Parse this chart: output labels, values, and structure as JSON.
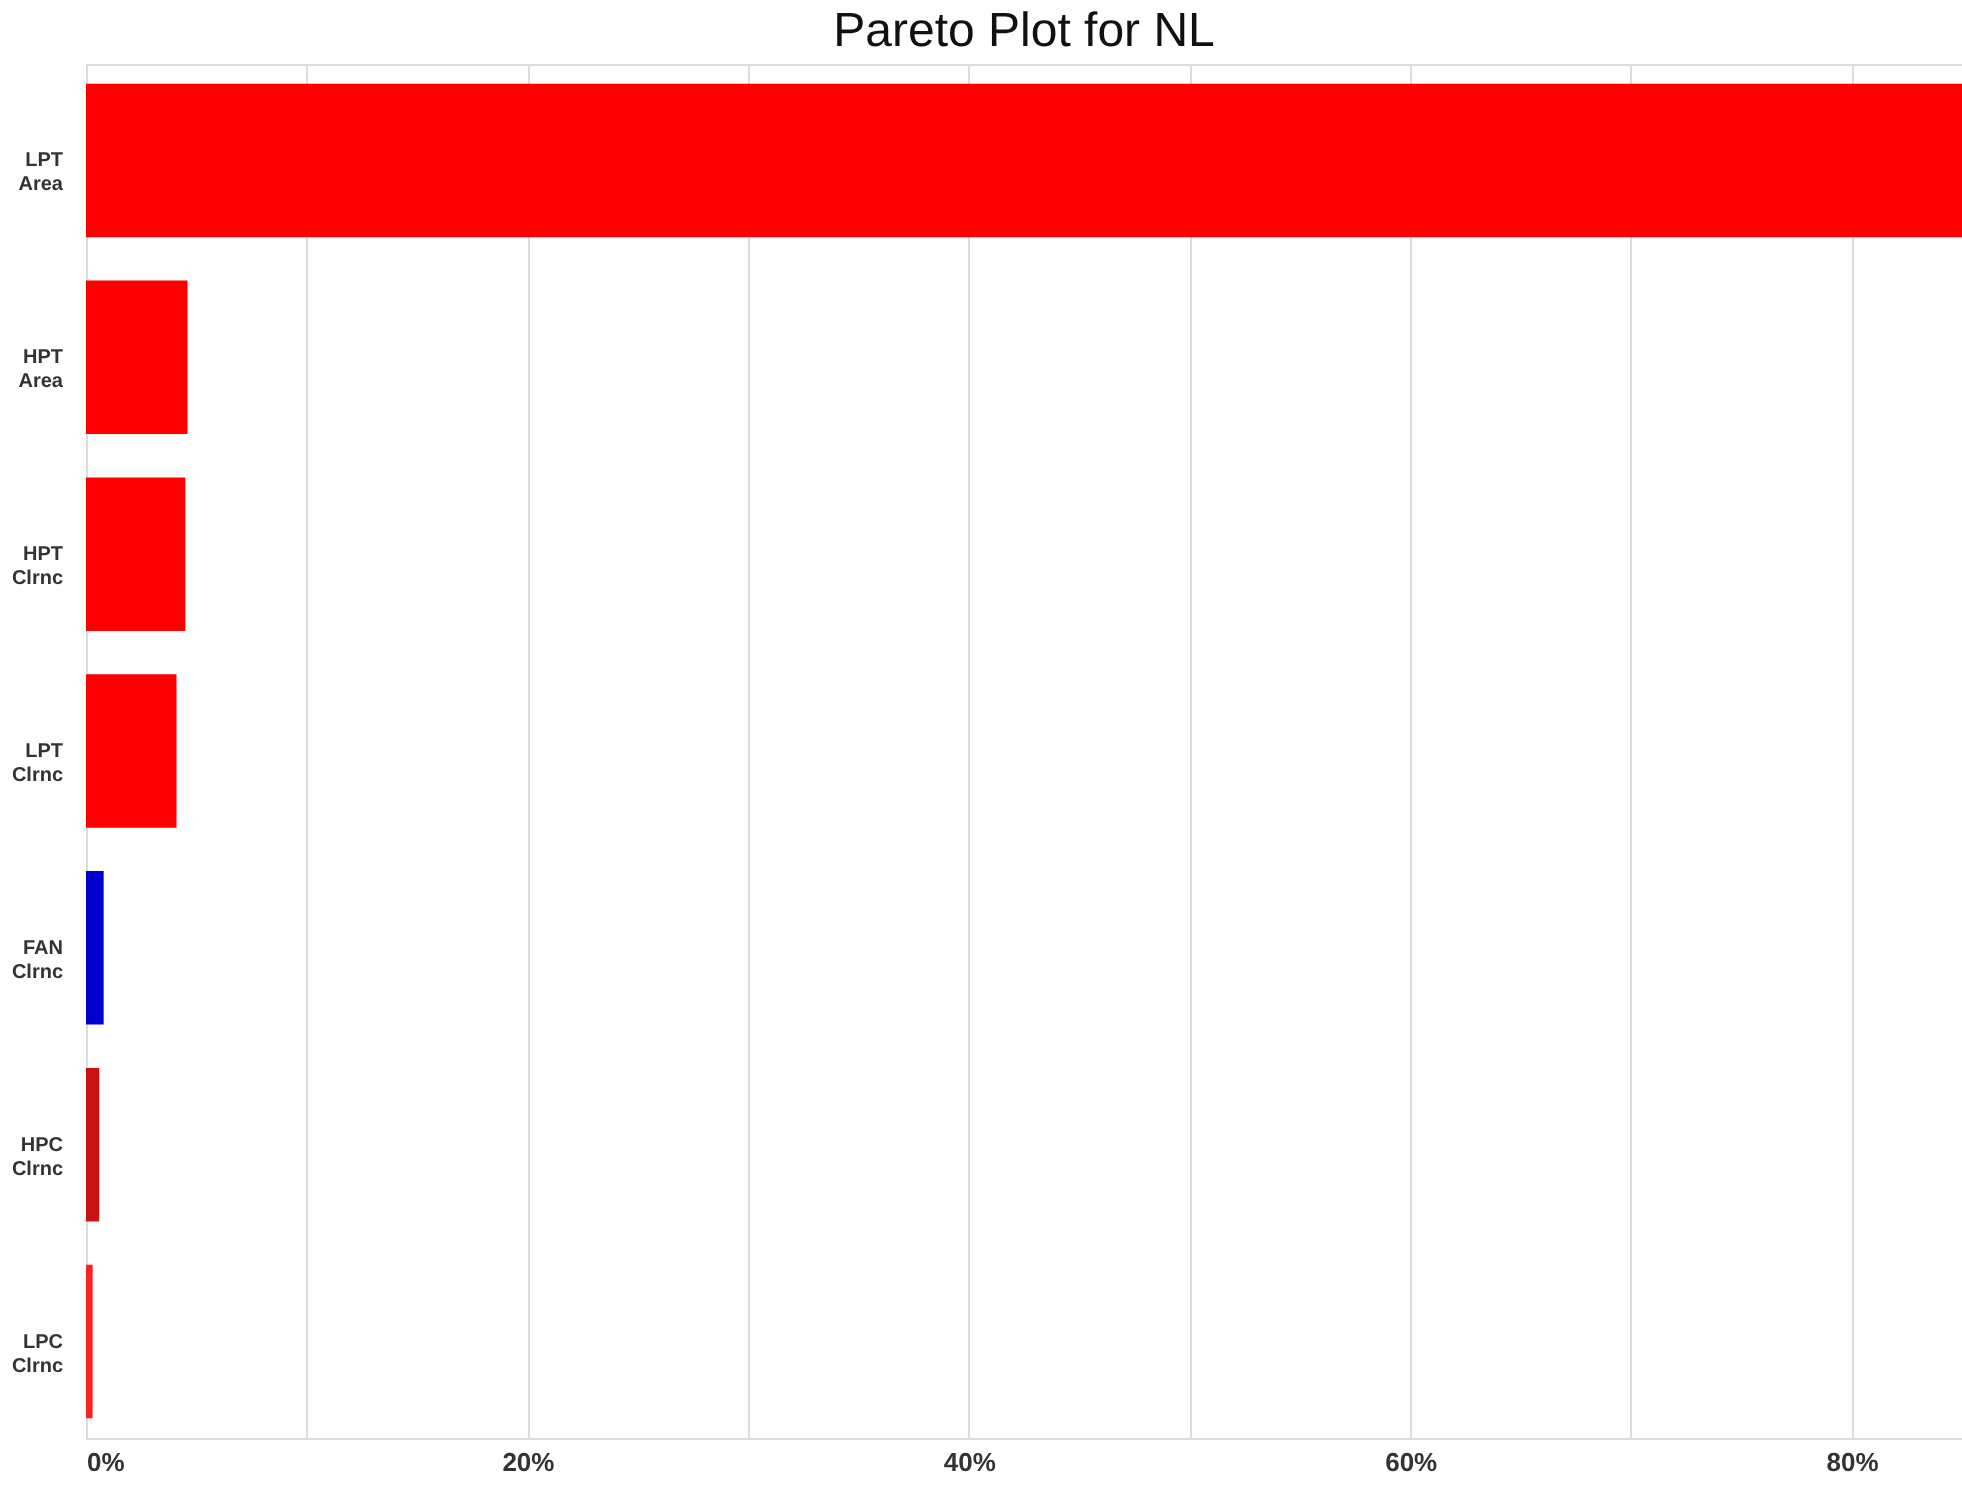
{
  "chart_data": {
    "type": "bar",
    "orientation": "horizontal",
    "title": "Pareto Plot for NL",
    "categories": [
      "LPT Area",
      "HPT Area",
      "HPT Clrnc",
      "LPT Clrnc",
      "FAN Clrnc",
      "HPC Clrnc",
      "LPC Clrnc"
    ],
    "values": [
      85,
      4.6,
      4.5,
      4.1,
      0.8,
      0.6,
      0.3
    ],
    "colors": [
      "#ff0000",
      "#ff0000",
      "#ff0000",
      "#ff0000",
      "#0000cc",
      "#cc1111",
      "#ff2020"
    ],
    "xlim": [
      0,
      85
    ],
    "xticks": [
      {
        "value": 0,
        "label": "0%"
      },
      {
        "value": 10,
        "label": null
      },
      {
        "value": 20,
        "label": "20%"
      },
      {
        "value": 30,
        "label": null
      },
      {
        "value": 40,
        "label": "40%"
      },
      {
        "value": 50,
        "label": null
      },
      {
        "value": 60,
        "label": "60%"
      },
      {
        "value": 70,
        "label": null
      },
      {
        "value": 80,
        "label": "80%"
      }
    ],
    "grid": "x"
  }
}
